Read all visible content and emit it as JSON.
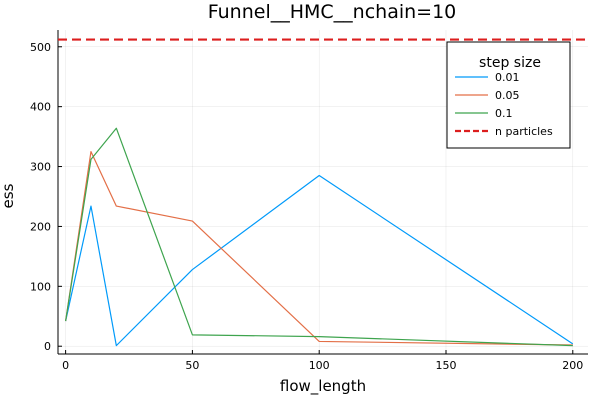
{
  "chart_data": {
    "type": "line",
    "title": "Funnel__HMC__nchain=10",
    "xlabel": "flow_length",
    "ylabel": "ess",
    "xlim": [
      -3,
      206
    ],
    "ylim": [
      -13,
      528
    ],
    "xticks": [
      0,
      50,
      100,
      150,
      200
    ],
    "yticks": [
      0,
      100,
      200,
      300,
      400,
      500
    ],
    "xtick_labels": [
      "0",
      "50",
      "100",
      "150",
      "200"
    ],
    "ytick_labels": [
      "0",
      "100",
      "200",
      "300",
      "400",
      "500"
    ],
    "grid": true,
    "legend": {
      "title": "step size",
      "position": "top-right"
    },
    "x": [
      0,
      10,
      20,
      50,
      100,
      200
    ],
    "series": [
      {
        "name": "0.01",
        "color": "#009AFA",
        "values": [
          42,
          234,
          1,
          128,
          285,
          4
        ]
      },
      {
        "name": "0.05",
        "color": "#E36F47",
        "values": [
          42,
          325,
          234,
          209,
          8,
          2
        ]
      },
      {
        "name": "0.1",
        "color": "#3EA44E",
        "values": [
          42,
          312,
          364,
          19,
          16,
          1
        ]
      }
    ],
    "reference_lines": [
      {
        "name": "n particles",
        "y": 512,
        "color": "#DC1E1E",
        "style": "dashed"
      }
    ]
  }
}
